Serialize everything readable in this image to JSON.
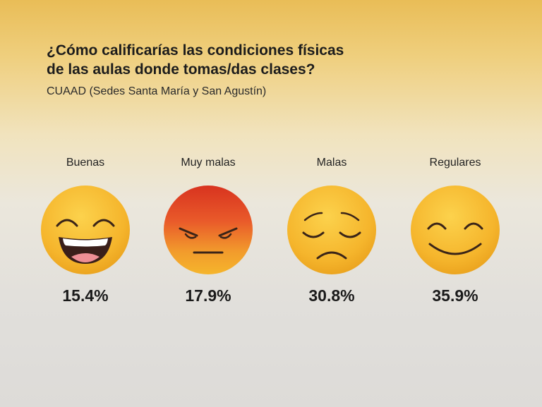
{
  "title_line1": "¿Cómo calificarías las condiciones físicas",
  "title_line2": "de las aulas donde tomas/das clases?",
  "subtitle": "CUAAD (Sedes Santa María y San Agustín)",
  "colors": {
    "emoji_yellow": "#f5b32a",
    "emoji_angry_top": "#e2402a",
    "text": "#1c1c1c"
  },
  "chart_data": {
    "type": "bar",
    "categories": [
      "Buenas",
      "Muy malas",
      "Malas",
      "Regulares"
    ],
    "values": [
      15.4,
      17.9,
      30.8,
      35.9
    ],
    "value_labels": [
      "15.4%",
      "17.9%",
      "30.8%",
      "35.9%"
    ],
    "icons": [
      "laughing-face-icon",
      "angry-face-icon",
      "sad-face-icon",
      "smiling-face-icon"
    ],
    "unit": "%",
    "title": "¿Cómo calificarías las condiciones físicas de las aulas donde tomas/das clases?",
    "subtitle": "CUAAD (Sedes Santa María y San Agustín)"
  }
}
